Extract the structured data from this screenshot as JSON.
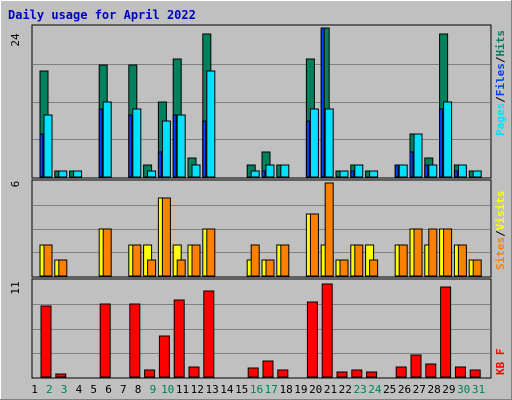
{
  "title": "Daily usage for April 2022",
  "colors": {
    "hits": "#00805c",
    "files": "#0040ff",
    "pages": "#00e0ff",
    "sites": "#ff8000",
    "visits": "#ffff00",
    "kbytes": "#ff0000",
    "title": "#0000c0",
    "weekend": "#00805c",
    "weekday": "#000000"
  },
  "labels": {
    "pages": "Pages",
    "files": "Files",
    "hits": "Hits",
    "sites": "Sites",
    "visits": "Visits",
    "kbytes": "KB F",
    "slash": "/"
  },
  "chart_data": [
    {
      "type": "bar",
      "panel": "hits-files-pages",
      "ytick": "24",
      "ymax": 24,
      "x": [
        "1",
        "2",
        "3",
        "4",
        "5",
        "6",
        "7",
        "8",
        "9",
        "10",
        "11",
        "12",
        "13",
        "14",
        "15",
        "16",
        "17",
        "18",
        "19",
        "20",
        "21",
        "22",
        "23",
        "24",
        "25",
        "26",
        "27",
        "28",
        "29",
        "30",
        "31"
      ],
      "series": [
        {
          "name": "Hits",
          "values": [
            17,
            1,
            1,
            0,
            18,
            0,
            18,
            2,
            12,
            19,
            3,
            23,
            0,
            0,
            2,
            4,
            2,
            0,
            19,
            24,
            1,
            2,
            1,
            0,
            2,
            7,
            3,
            23,
            2,
            1,
            0
          ]
        },
        {
          "name": "Files",
          "values": [
            7,
            0,
            0,
            0,
            11,
            0,
            10,
            0,
            4,
            10,
            0,
            9,
            0,
            0,
            0,
            1,
            0,
            0,
            9,
            24,
            0,
            1,
            0,
            0,
            2,
            4,
            2,
            11,
            1,
            0,
            0
          ]
        },
        {
          "name": "Pages",
          "values": [
            10,
            1,
            1,
            0,
            12,
            0,
            11,
            1,
            9,
            10,
            2,
            17,
            0,
            0,
            1,
            2,
            2,
            0,
            11,
            11,
            1,
            2,
            1,
            0,
            2,
            7,
            2,
            12,
            2,
            1,
            0
          ]
        }
      ]
    },
    {
      "type": "bar",
      "panel": "sites-visits",
      "ytick": "6",
      "ymax": 6,
      "x": [
        "1",
        "2",
        "3",
        "4",
        "5",
        "6",
        "7",
        "8",
        "9",
        "10",
        "11",
        "12",
        "13",
        "14",
        "15",
        "16",
        "17",
        "18",
        "19",
        "20",
        "21",
        "22",
        "23",
        "24",
        "25",
        "26",
        "27",
        "28",
        "29",
        "30",
        "31"
      ],
      "series": [
        {
          "name": "Visits",
          "values": [
            2,
            1,
            0,
            0,
            3,
            0,
            2,
            2,
            5,
            2,
            2,
            3,
            0,
            0,
            1,
            1,
            2,
            0,
            4,
            2,
            1,
            2,
            2,
            0,
            2,
            3,
            2,
            3,
            2,
            1,
            0
          ]
        },
        {
          "name": "Sites",
          "values": [
            2,
            1,
            0,
            0,
            3,
            0,
            2,
            1,
            5,
            1,
            2,
            3,
            0,
            0,
            2,
            1,
            2,
            0,
            4,
            6,
            1,
            2,
            1,
            0,
            2,
            3,
            3,
            3,
            2,
            1,
            0
          ]
        }
      ]
    },
    {
      "type": "bar",
      "panel": "kbytes",
      "ytick": "11",
      "ymax": 11,
      "x": [
        "1",
        "2",
        "3",
        "4",
        "5",
        "6",
        "7",
        "8",
        "9",
        "10",
        "11",
        "12",
        "13",
        "14",
        "15",
        "16",
        "17",
        "18",
        "19",
        "20",
        "21",
        "22",
        "23",
        "24",
        "25",
        "26",
        "27",
        "28",
        "29",
        "30",
        "31"
      ],
      "series": [
        {
          "name": "KB F",
          "values": [
            8.2,
            0.4,
            0,
            0,
            8.5,
            0,
            8.4,
            0.8,
            4.8,
            8.9,
            1.2,
            10.0,
            0,
            0,
            1.0,
            1.8,
            0.8,
            0,
            8.7,
            10.8,
            0.6,
            0.8,
            0.6,
            0,
            1.2,
            2.6,
            1.5,
            10.4,
            1.1,
            0.8,
            0
          ]
        }
      ]
    }
  ]
}
